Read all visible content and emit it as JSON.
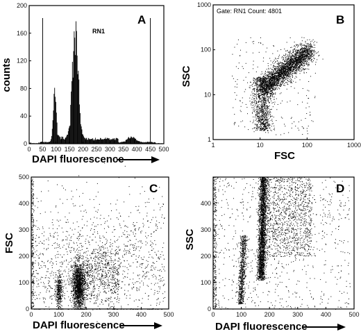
{
  "chart_data": [
    {
      "panel": "A",
      "type": "histogram",
      "xlabel": "DAPI fluorescence",
      "ylabel": "counts",
      "xlim": [
        0,
        500
      ],
      "ylim": [
        0,
        200
      ],
      "xticks": [
        "0",
        "50",
        "100",
        "150",
        "200",
        "250",
        "300",
        "350",
        "400",
        "450",
        "500"
      ],
      "yticks": [
        "0",
        "40",
        "80",
        "120",
        "160",
        "200"
      ],
      "gate_label": "RN1",
      "gate_bounds": [
        50,
        450
      ],
      "peaks": [
        {
          "x": 95,
          "height": 70
        },
        {
          "x": 172,
          "height": 165
        },
        {
          "x": 380,
          "height": 8
        }
      ]
    },
    {
      "panel": "B",
      "type": "scatter",
      "xlabel": "FSC",
      "ylabel": "SSC",
      "xscale": "log",
      "yscale": "log",
      "xlim": [
        1,
        1000
      ],
      "ylim": [
        1,
        1000
      ],
      "xticks": [
        "1",
        "10",
        "100",
        "1000"
      ],
      "yticks": [
        "1",
        "10",
        "100",
        "1000"
      ],
      "gate_text": "Gate: RN1 Count: 4801"
    },
    {
      "panel": "C",
      "type": "scatter",
      "xlabel": "DAPI fluorescence",
      "ylabel": "FSC",
      "xlim": [
        0,
        500
      ],
      "ylim": [
        0,
        500
      ],
      "xticks": [
        "0",
        "100",
        "200",
        "300",
        "400",
        "500"
      ],
      "yticks": [
        "0",
        "100",
        "200",
        "300",
        "400",
        "500"
      ]
    },
    {
      "panel": "D",
      "type": "scatter",
      "xlabel": "DAPI fluorescence",
      "ylabel": "SSC",
      "xlim": [
        0,
        500
      ],
      "ylim": [
        0,
        500
      ],
      "xticks": [
        "0",
        "100",
        "200",
        "300",
        "400",
        "500"
      ],
      "yticks": [
        "0",
        "100",
        "200",
        "300",
        "400"
      ]
    }
  ]
}
